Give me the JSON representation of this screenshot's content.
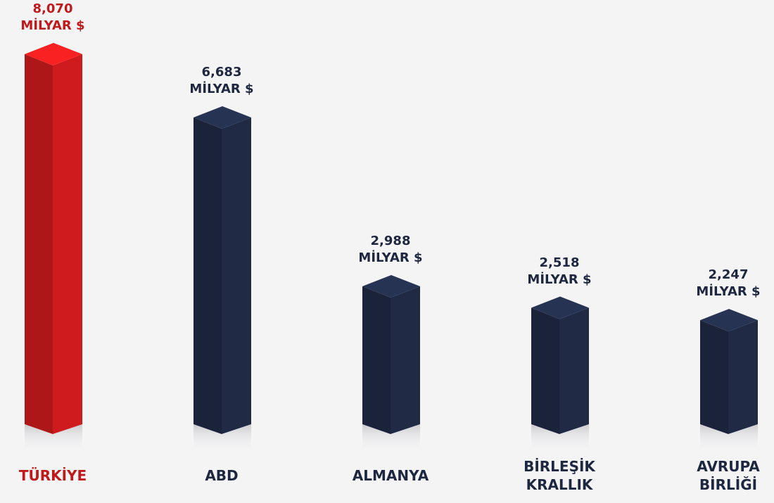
{
  "chart_data": {
    "type": "bar3d",
    "categories": [
      "TÜRKİYE",
      "ABD",
      "ALMANYA",
      "BİRLEŞİK KRALLIK",
      "AVRUPA BİRLİĞİ"
    ],
    "values": [
      8070,
      6683,
      2988,
      2518,
      2247
    ],
    "value_labels": [
      "8,070",
      "6,683",
      "2,988",
      "2,518",
      "2,247"
    ],
    "unit_label": "MİLYAR $",
    "colors": [
      "#c0191b",
      "#1e2740",
      "#1e2740",
      "#1e2740",
      "#1e2740"
    ]
  }
}
